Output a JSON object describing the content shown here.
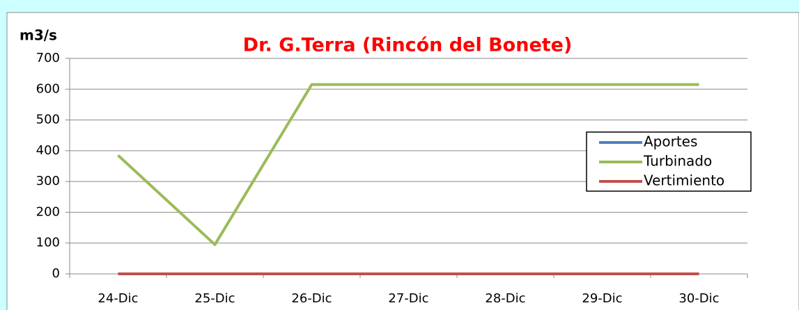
{
  "chart_data": {
    "type": "line",
    "title": "Dr. G.Terra (Rincón del Bonete)",
    "y_label": "m3/s",
    "categories": [
      "24-Dic",
      "25-Dic",
      "26-Dic",
      "27-Dic",
      "28-Dic",
      "29-Dic",
      "30-Dic"
    ],
    "series": [
      {
        "name": "Aportes",
        "color": "#4f81bd",
        "values": [
          0,
          0,
          0,
          0,
          0,
          0,
          0
        ]
      },
      {
        "name": "Turbinado",
        "color": "#9bbb59",
        "values": [
          385,
          95,
          615,
          615,
          615,
          615,
          615
        ]
      },
      {
        "name": "Vertimiento",
        "color": "#c0504d",
        "values": [
          0,
          0,
          0,
          0,
          0,
          0,
          0
        ]
      }
    ],
    "ylim": [
      0,
      700
    ],
    "yticks": [
      0,
      100,
      200,
      300,
      400,
      500,
      600,
      700
    ],
    "grid": true,
    "legend": "right"
  }
}
